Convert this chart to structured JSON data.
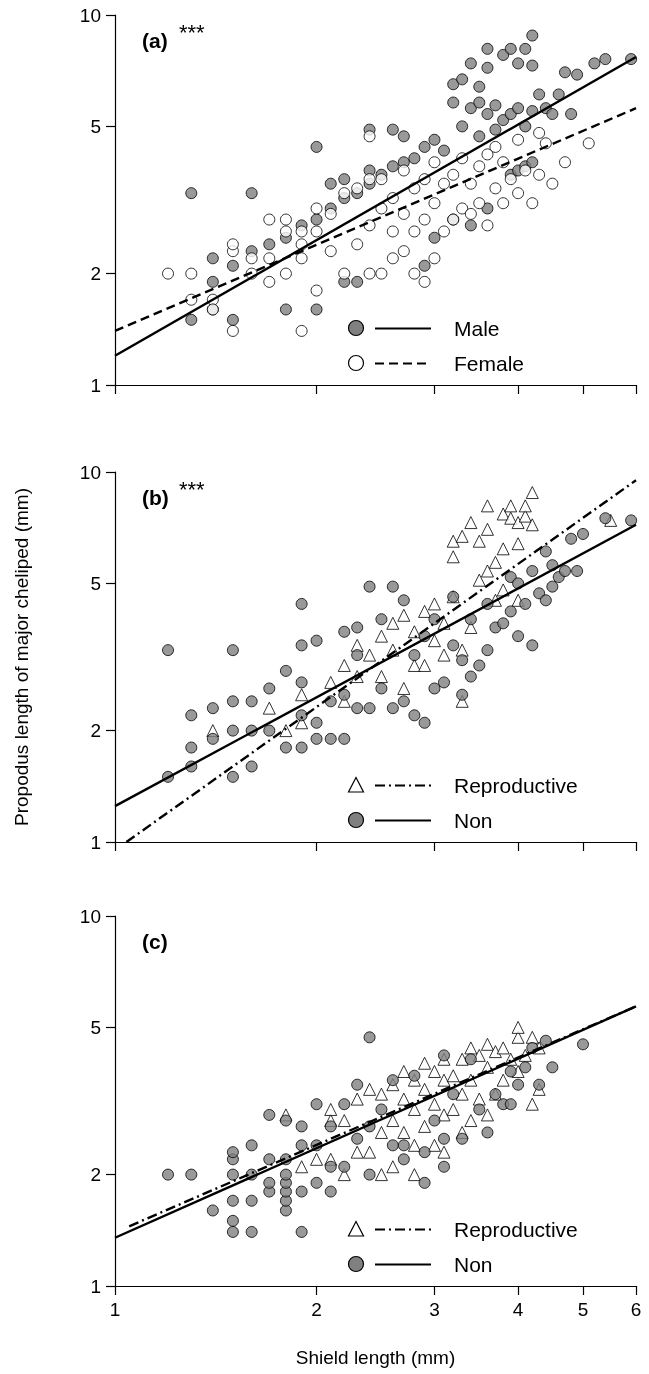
{
  "chart_data": [
    {
      "type": "scatter",
      "title": "(a)",
      "annotations": [
        "***"
      ],
      "xlim": [
        1,
        6
      ],
      "xticks": [
        1,
        2,
        3,
        4,
        5,
        6
      ],
      "ylim": [
        1,
        10
      ],
      "yticks": [
        1,
        2,
        5,
        10
      ],
      "log": "xy",
      "tick_labels": "y",
      "legend": "bottom right",
      "series": [
        {
          "name": "Male",
          "color": "#808080",
          "marker": "circle",
          "x": [
            1.3,
            1.6,
            1.3,
            1.4,
            1.4,
            1.4,
            1.5,
            1.5,
            1.6,
            1.7,
            1.8,
            1.8,
            1.9,
            2.0,
            2.0,
            2.0,
            2.1,
            2.1,
            2.2,
            2.2,
            2.2,
            2.3,
            2.3,
            2.4,
            2.4,
            2.4,
            2.5,
            2.6,
            2.6,
            2.7,
            2.7,
            2.8,
            2.9,
            2.9,
            3.0,
            3.0,
            3.1,
            3.2,
            3.2,
            3.2,
            3.3,
            3.3,
            3.4,
            3.4,
            3.4,
            3.5,
            3.5,
            3.5,
            3.6,
            3.6,
            3.6,
            3.6,
            3.7,
            3.7,
            3.8,
            3.8,
            3.9,
            3.9,
            3.9,
            4.0,
            4.0,
            4.0,
            4.1,
            4.1,
            4.1,
            4.2,
            4.2,
            4.2,
            4.2,
            4.3,
            4.4,
            4.5,
            4.6,
            4.7,
            4.8,
            4.9,
            5.2,
            5.4,
            5.9
          ],
          "values": [
            3.3,
            3.3,
            1.5,
            1.6,
            1.9,
            2.2,
            1.5,
            2.1,
            2.3,
            2.4,
            1.6,
            2.5,
            2.7,
            1.6,
            2.8,
            4.4,
            3.0,
            3.5,
            1.9,
            3.2,
            3.6,
            1.9,
            3.3,
            3.5,
            3.8,
            4.9,
            3.7,
            3.9,
            4.9,
            4.0,
            4.7,
            4.1,
            2.1,
            4.4,
            2.5,
            4.6,
            4.3,
            2.8,
            5.8,
            6.5,
            5.0,
            6.7,
            2.7,
            5.6,
            7.4,
            4.7,
            5.8,
            6.4,
            3.0,
            5.4,
            7.2,
            8.1,
            4.9,
            5.7,
            5.2,
            7.8,
            3.7,
            5.4,
            8.1,
            3.8,
            5.6,
            7.4,
            3.9,
            5.0,
            8.1,
            4.0,
            5.5,
            7.3,
            8.8,
            6.1,
            5.6,
            5.4,
            6.1,
            7.0,
            5.4,
            6.9,
            7.4,
            7.6,
            7.6
          ]
        },
        {
          "name": "Female",
          "color": "#ffffff",
          "marker": "circle",
          "x": [
            1.2,
            1.3,
            1.3,
            1.4,
            1.4,
            1.5,
            1.5,
            1.5,
            1.6,
            1.6,
            1.7,
            1.7,
            1.7,
            1.8,
            1.8,
            1.8,
            1.9,
            1.9,
            1.9,
            1.9,
            2.0,
            2.0,
            2.0,
            2.1,
            2.1,
            2.2,
            2.2,
            2.3,
            2.3,
            2.4,
            2.4,
            2.4,
            2.4,
            2.5,
            2.5,
            2.5,
            2.6,
            2.6,
            2.6,
            2.7,
            2.7,
            2.7,
            2.8,
            2.8,
            2.8,
            2.9,
            2.9,
            2.9,
            3.0,
            3.0,
            3.0,
            3.1,
            3.1,
            3.2,
            3.2,
            3.3,
            3.3,
            3.4,
            3.4,
            3.5,
            3.5,
            3.6,
            3.6,
            3.7,
            3.7,
            3.8,
            3.8,
            3.9,
            4.0,
            4.0,
            4.1,
            4.2,
            4.3,
            4.3,
            4.4,
            4.5,
            4.7,
            5.1
          ],
          "values": [
            2.0,
            2.0,
            1.7,
            1.7,
            1.6,
            1.4,
            2.3,
            2.4,
            2.2,
            2.0,
            1.9,
            2.2,
            2.8,
            2.0,
            2.6,
            2.8,
            1.4,
            2.2,
            2.4,
            2.6,
            1.8,
            2.6,
            3.0,
            2.3,
            2.9,
            2.0,
            3.3,
            2.4,
            3.4,
            2.0,
            2.7,
            3.6,
            4.7,
            2.0,
            3.0,
            3.6,
            2.2,
            2.6,
            3.2,
            2.3,
            2.9,
            3.8,
            2.0,
            2.6,
            3.4,
            1.9,
            2.8,
            3.6,
            2.2,
            3.1,
            4.0,
            2.6,
            3.5,
            2.8,
            3.7,
            3.0,
            4.1,
            2.9,
            3.5,
            3.1,
            3.9,
            2.7,
            4.2,
            3.4,
            4.4,
            3.1,
            4.0,
            3.6,
            3.3,
            4.6,
            3.8,
            3.1,
            3.7,
            4.8,
            4.5,
            3.5,
            4.0,
            4.5
          ]
        },
        {
          "type": "line",
          "color": "#000000",
          "line_style": "solid",
          "marker": "none",
          "x": [
            1,
            6
          ],
          "values": [
            1.2,
            7.7
          ]
        },
        {
          "type": "line",
          "color": "#000000",
          "line_style": "dashed",
          "marker": "none",
          "x": [
            1,
            6
          ],
          "values": [
            1.4,
            5.6
          ]
        }
      ]
    },
    {
      "type": "scatter",
      "title": "(b)",
      "annotations": [
        "***"
      ],
      "ylabel": "Propodus length of major cheliped (mm)",
      "xlim": [
        1,
        6
      ],
      "xticks": [
        1,
        2,
        3,
        4,
        5,
        6
      ],
      "ylim": [
        1,
        10
      ],
      "yticks": [
        1,
        2,
        5,
        10
      ],
      "log": "xy",
      "tick_labels": "y",
      "legend": "bottom right",
      "series": [
        {
          "name": "Reproductive",
          "color": "#ffffff",
          "marker": "triangle",
          "x": [
            1.4,
            1.7,
            1.8,
            1.9,
            1.9,
            2.1,
            2.2,
            2.2,
            2.3,
            2.3,
            2.4,
            2.5,
            2.5,
            2.6,
            2.6,
            2.7,
            2.7,
            2.8,
            2.8,
            2.9,
            2.9,
            3.0,
            3.0,
            3.1,
            3.1,
            3.2,
            3.2,
            3.2,
            3.3,
            3.3,
            3.3,
            3.4,
            3.4,
            3.5,
            3.5,
            3.6,
            3.6,
            3.6,
            3.7,
            3.7,
            3.8,
            3.8,
            3.8,
            3.9,
            3.9,
            4.0,
            4.0,
            4.0,
            4.1,
            4.1,
            4.2,
            4.2,
            5.5
          ],
          "values": [
            2.0,
            2.3,
            2.0,
            2.1,
            2.5,
            2.7,
            2.4,
            3.0,
            2.8,
            3.4,
            3.2,
            2.8,
            3.6,
            3.3,
            3.9,
            2.6,
            4.1,
            3.0,
            3.7,
            3.0,
            4.2,
            3.5,
            4.4,
            3.2,
            3.9,
            4.6,
            5.9,
            6.5,
            2.4,
            3.3,
            6.7,
            3.8,
            7.3,
            5.1,
            6.5,
            5.4,
            7.0,
            8.1,
            4.5,
            5.7,
            4.8,
            6.2,
            7.7,
            7.5,
            8.1,
            4.5,
            6.4,
            7.3,
            7.6,
            8.1,
            7.2,
            8.8,
            7.4
          ]
        },
        {
          "name": "Non",
          "color": "#808080",
          "marker": "circle",
          "x": [
            1.2,
            1.2,
            1.3,
            1.3,
            1.3,
            1.4,
            1.4,
            1.5,
            1.5,
            1.5,
            1.5,
            1.6,
            1.6,
            1.6,
            1.7,
            1.7,
            1.8,
            1.8,
            1.9,
            1.9,
            1.9,
            1.9,
            1.9,
            2.0,
            2.0,
            2.0,
            2.1,
            2.1,
            2.2,
            2.2,
            2.2,
            2.3,
            2.3,
            2.3,
            2.4,
            2.4,
            2.5,
            2.5,
            2.6,
            2.6,
            2.7,
            2.7,
            2.8,
            2.8,
            2.9,
            2.9,
            3.0,
            3.0,
            3.1,
            3.2,
            3.2,
            3.3,
            3.3,
            3.4,
            3.4,
            3.5,
            3.6,
            3.6,
            3.7,
            3.8,
            3.9,
            3.9,
            4.0,
            4.0,
            4.1,
            4.2,
            4.2,
            4.3,
            4.4,
            4.4,
            4.5,
            4.5,
            4.6,
            4.7,
            4.8,
            4.9,
            5.0,
            5.4,
            5.9
          ],
          "values": [
            1.5,
            3.3,
            1.6,
            1.8,
            2.2,
            1.9,
            2.3,
            1.5,
            2.0,
            2.4,
            3.3,
            1.6,
            2.0,
            2.4,
            2.0,
            2.6,
            1.8,
            2.9,
            1.8,
            2.2,
            2.7,
            3.4,
            4.4,
            1.9,
            2.1,
            3.5,
            1.9,
            2.4,
            1.9,
            2.5,
            3.7,
            2.3,
            3.2,
            3.8,
            2.3,
            4.9,
            2.6,
            4.0,
            2.3,
            4.9,
            2.4,
            4.5,
            2.2,
            3.2,
            2.1,
            3.6,
            2.6,
            4.0,
            2.7,
            3.4,
            4.6,
            2.5,
            3.1,
            2.8,
            4.0,
            3.0,
            3.3,
            4.4,
            3.8,
            3.9,
            4.2,
            5.2,
            3.6,
            5.0,
            4.4,
            3.4,
            5.4,
            4.7,
            4.5,
            6.1,
            4.9,
            5.6,
            5.2,
            5.4,
            6.6,
            5.4,
            6.8,
            7.5,
            7.4
          ]
        },
        {
          "type": "line",
          "color": "#000000",
          "line_style": "dashdot",
          "marker": "none",
          "x": [
            1.04,
            6
          ],
          "values": [
            1.0,
            9.5
          ]
        },
        {
          "type": "line",
          "color": "#000000",
          "line_style": "solid",
          "marker": "none",
          "x": [
            1,
            6
          ],
          "values": [
            1.25,
            7.2
          ]
        }
      ]
    },
    {
      "type": "scatter",
      "title": "(c)",
      "xlabel": "Shield length (mm)",
      "xlim": [
        1,
        6
      ],
      "xticks": [
        1,
        2,
        3,
        4,
        5,
        6
      ],
      "ylim": [
        1,
        10
      ],
      "yticks": [
        1,
        2,
        5,
        10
      ],
      "log": "xy",
      "legend": "bottom right",
      "series": [
        {
          "name": "Reproductive",
          "color": "#ffffff",
          "marker": "triangle",
          "x": [
            1.8,
            1.9,
            2.0,
            2.1,
            2.1,
            2.1,
            2.2,
            2.2,
            2.3,
            2.3,
            2.4,
            2.4,
            2.5,
            2.5,
            2.5,
            2.6,
            2.6,
            2.6,
            2.7,
            2.7,
            2.7,
            2.8,
            2.8,
            2.8,
            2.8,
            2.9,
            2.9,
            2.9,
            3.0,
            3.0,
            3.0,
            3.1,
            3.1,
            3.1,
            3.1,
            3.2,
            3.2,
            3.3,
            3.3,
            3.3,
            3.4,
            3.4,
            3.4,
            3.5,
            3.5,
            3.6,
            3.6,
            3.6,
            3.7,
            3.7,
            3.8,
            3.8,
            3.9,
            4.0,
            4.0,
            4.0,
            4.1,
            4.2,
            4.2,
            4.3,
            4.3
          ],
          "values": [
            2.9,
            2.1,
            2.2,
            2.2,
            2.8,
            3.0,
            2.0,
            2.8,
            2.3,
            3.2,
            2.3,
            3.4,
            2.0,
            2.6,
            3.3,
            2.1,
            2.8,
            3.5,
            2.6,
            3.2,
            3.8,
            2.0,
            2.4,
            3.0,
            3.6,
            2.7,
            3.4,
            4.0,
            2.4,
            3.1,
            3.8,
            2.3,
            2.9,
            3.6,
            4.1,
            3.0,
            3.7,
            2.6,
            3.3,
            4.1,
            2.8,
            3.6,
            4.4,
            3.2,
            4.2,
            2.9,
            3.9,
            4.5,
            3.3,
            4.3,
            3.6,
            4.4,
            4.1,
            3.8,
            4.7,
            5.0,
            4.2,
            4.7,
            3.1,
            3.4,
            4.4
          ]
        },
        {
          "name": "Non",
          "color": "#808080",
          "marker": "circle",
          "x": [
            1.2,
            1.3,
            1.4,
            1.5,
            1.5,
            1.5,
            1.5,
            1.5,
            1.5,
            1.6,
            1.6,
            1.6,
            1.6,
            1.7,
            1.7,
            1.7,
            1.7,
            1.8,
            1.8,
            1.8,
            1.8,
            1.8,
            1.8,
            1.8,
            1.9,
            1.9,
            1.9,
            1.9,
            2.0,
            2.0,
            2.0,
            2.1,
            2.1,
            2.1,
            2.2,
            2.2,
            2.3,
            2.3,
            2.4,
            2.4,
            2.4,
            2.5,
            2.6,
            2.6,
            2.7,
            2.7,
            2.8,
            2.9,
            2.9,
            3.0,
            3.1,
            3.1,
            3.1,
            3.2,
            3.3,
            3.4,
            3.5,
            3.6,
            3.7,
            3.8,
            3.9,
            3.9,
            4.0,
            4.1,
            4.2,
            4.3,
            4.4,
            4.5,
            5.0
          ],
          "values": [
            2.0,
            2.0,
            1.6,
            1.4,
            1.5,
            1.7,
            2.0,
            2.2,
            2.3,
            1.4,
            1.7,
            2.0,
            2.4,
            1.8,
            1.9,
            2.2,
            2.9,
            1.6,
            1.7,
            1.8,
            1.9,
            2.0,
            2.2,
            2.8,
            1.4,
            1.8,
            2.4,
            2.7,
            1.9,
            2.4,
            3.1,
            1.8,
            2.1,
            2.7,
            2.1,
            3.1,
            2.5,
            3.5,
            2.0,
            2.7,
            4.7,
            3.0,
            2.4,
            3.6,
            2.2,
            2.4,
            3.7,
            1.9,
            2.3,
            2.8,
            2.1,
            2.5,
            4.2,
            3.3,
            2.5,
            4.1,
            3.0,
            2.6,
            3.3,
            3.1,
            3.1,
            3.8,
            3.5,
            3.9,
            4.4,
            3.5,
            4.6,
            3.9,
            4.5
          ]
        },
        {
          "type": "line",
          "color": "#000000",
          "line_style": "dashdot",
          "marker": "none",
          "x": [
            1.05,
            6
          ],
          "values": [
            1.45,
            5.7
          ]
        },
        {
          "type": "line",
          "color": "#000000",
          "line_style": "solid",
          "marker": "none",
          "x": [
            1,
            6
          ],
          "values": [
            1.35,
            5.7
          ]
        }
      ]
    }
  ]
}
